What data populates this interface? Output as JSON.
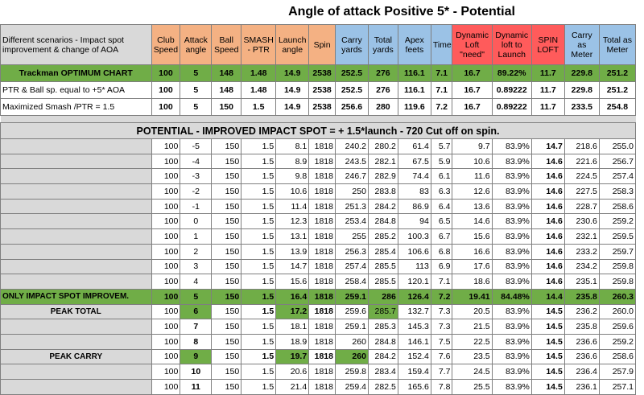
{
  "title": "Angle of attack Positive 5* - Potential",
  "columns": {
    "description": "Different scenarios - Impact spot improvement & change of AOA",
    "club_speed": "Club Speed",
    "attack_angle": "Attack angle",
    "ball_speed": "Ball Speed",
    "smash_ptr": "SMASH - PTR",
    "launch_angle": "Launch angle",
    "spin": "Spin",
    "carry_yards": "Carry yards",
    "total_yards": "Total yards",
    "apex_feet": "Apex feets",
    "time": "Time",
    "dyn_loft_need": "Dynamic Loft \"need\"",
    "dyn_loft_launch": "Dynamic loft to Launch",
    "spin_loft": "SPIN LOFT",
    "carry_meter": "Carry as Meter",
    "total_meter": "Total as Meter"
  },
  "top_rows": [
    {
      "label": "Trackman OPTIMUM CHART",
      "cells": [
        "100",
        "5",
        "148",
        "1.48",
        "14.9",
        "2538",
        "252.5",
        "276",
        "116.1",
        "7.1",
        "16.7",
        "89.22%",
        "11.7",
        "229.8",
        "251.2"
      ]
    },
    {
      "label": "PTR & Ball sp. equal to +5* AOA",
      "cells": [
        "100",
        "5",
        "148",
        "1.48",
        "14.9",
        "2538",
        "252.5",
        "276",
        "116.1",
        "7.1",
        "16.7",
        "0.89222",
        "11.7",
        "229.8",
        "251.2"
      ]
    },
    {
      "label": "Maximized Smash /PTR = 1.5",
      "cells": [
        "100",
        "5",
        "150",
        "1.5",
        "14.9",
        "2538",
        "256.6",
        "280",
        "119.6",
        "7.2",
        "16.7",
        "0.89222",
        "11.7",
        "233.5",
        "254.8"
      ]
    }
  ],
  "potential_title": "POTENTIAL - IMPROVED IMPACT SPOT = + 1.5*launch - 720 Cut off on spin.",
  "potential_rows": [
    {
      "label": "",
      "cells": [
        "100",
        "-5",
        "150",
        "1.5",
        "8.1",
        "1818",
        "240.2",
        "280.2",
        "61.4",
        "5.7",
        "9.7",
        "83.9%",
        "14.7",
        "218.6",
        "255.0"
      ]
    },
    {
      "label": "",
      "cells": [
        "100",
        "-4",
        "150",
        "1.5",
        "8.9",
        "1818",
        "243.5",
        "282.1",
        "67.5",
        "5.9",
        "10.6",
        "83.9%",
        "14.6",
        "221.6",
        "256.7"
      ]
    },
    {
      "label": "",
      "cells": [
        "100",
        "-3",
        "150",
        "1.5",
        "9.8",
        "1818",
        "246.7",
        "282.9",
        "74.4",
        "6.1",
        "11.6",
        "83.9%",
        "14.6",
        "224.5",
        "257.4"
      ]
    },
    {
      "label": "",
      "cells": [
        "100",
        "-2",
        "150",
        "1.5",
        "10.6",
        "1818",
        "250",
        "283.8",
        "83",
        "6.3",
        "12.6",
        "83.9%",
        "14.6",
        "227.5",
        "258.3"
      ]
    },
    {
      "label": "",
      "cells": [
        "100",
        "-1",
        "150",
        "1.5",
        "11.4",
        "1818",
        "251.3",
        "284.2",
        "86.9",
        "6.4",
        "13.6",
        "83.9%",
        "14.6",
        "228.7",
        "258.6"
      ]
    },
    {
      "label": "",
      "cells": [
        "100",
        "0",
        "150",
        "1.5",
        "12.3",
        "1818",
        "253.4",
        "284.8",
        "94",
        "6.5",
        "14.6",
        "83.9%",
        "14.6",
        "230.6",
        "259.2"
      ]
    },
    {
      "label": "",
      "cells": [
        "100",
        "1",
        "150",
        "1.5",
        "13.1",
        "1818",
        "255",
        "285.2",
        "100.3",
        "6.7",
        "15.6",
        "83.9%",
        "14.6",
        "232.1",
        "259.5"
      ]
    },
    {
      "label": "",
      "cells": [
        "100",
        "2",
        "150",
        "1.5",
        "13.9",
        "1818",
        "256.3",
        "285.4",
        "106.6",
        "6.8",
        "16.6",
        "83.9%",
        "14.6",
        "233.2",
        "259.7"
      ]
    },
    {
      "label": "",
      "cells": [
        "100",
        "3",
        "150",
        "1.5",
        "14.7",
        "1818",
        "257.4",
        "285.5",
        "113",
        "6.9",
        "17.6",
        "83.9%",
        "14.6",
        "234.2",
        "259.8"
      ]
    },
    {
      "label": "",
      "cells": [
        "100",
        "4",
        "150",
        "1.5",
        "15.6",
        "1818",
        "258.4",
        "285.5",
        "120.1",
        "7.1",
        "18.6",
        "83.9%",
        "14.6",
        "235.1",
        "259.8"
      ]
    },
    {
      "label": "ONLY IMPACT SPOT IMPROVEM.",
      "cells": [
        "100",
        "5",
        "150",
        "1.5",
        "16.4",
        "1818",
        "259.1",
        "286",
        "126.4",
        "7.2",
        "19.41",
        "84.48%",
        "14.4",
        "235.8",
        "260.3"
      ]
    },
    {
      "label": "PEAK TOTAL",
      "cells": [
        "100",
        "6",
        "150",
        "1.5",
        "17.2",
        "1818",
        "259.6",
        "285.7",
        "132.7",
        "7.3",
        "20.5",
        "83.9%",
        "14.5",
        "236.2",
        "260.0"
      ]
    },
    {
      "label": "",
      "cells": [
        "100",
        "7",
        "150",
        "1.5",
        "18.1",
        "1818",
        "259.1",
        "285.3",
        "145.3",
        "7.3",
        "21.5",
        "83.9%",
        "14.5",
        "235.8",
        "259.6"
      ]
    },
    {
      "label": "",
      "cells": [
        "100",
        "8",
        "150",
        "1.5",
        "18.9",
        "1818",
        "260",
        "284.8",
        "146.1",
        "7.5",
        "22.5",
        "83.9%",
        "14.5",
        "236.6",
        "259.2"
      ]
    },
    {
      "label": "PEAK CARRY",
      "cells": [
        "100",
        "9",
        "150",
        "1.5",
        "19.7",
        "1818",
        "260",
        "284.2",
        "152.4",
        "7.6",
        "23.5",
        "83.9%",
        "14.5",
        "236.6",
        "258.6"
      ]
    },
    {
      "label": "",
      "cells": [
        "100",
        "10",
        "150",
        "1.5",
        "20.6",
        "1818",
        "259.8",
        "283.4",
        "159.4",
        "7.7",
        "24.5",
        "83.9%",
        "14.5",
        "236.4",
        "257.9"
      ]
    },
    {
      "label": "",
      "cells": [
        "100",
        "11",
        "150",
        "1.5",
        "21.4",
        "1818",
        "259.4",
        "282.5",
        "165.6",
        "7.8",
        "25.5",
        "83.9%",
        "14.5",
        "236.1",
        "257.1"
      ]
    }
  ]
}
